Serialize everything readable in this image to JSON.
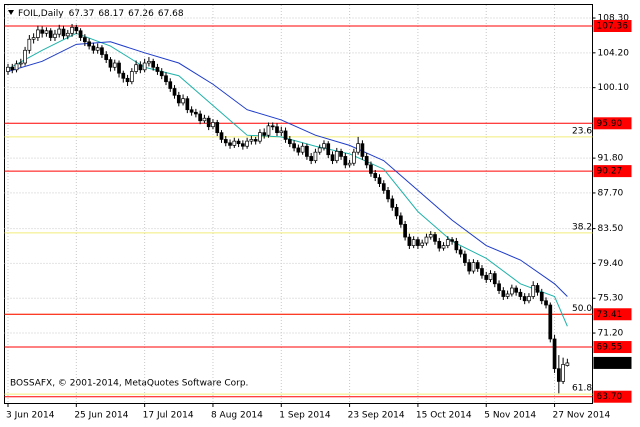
{
  "chart_data": {
    "type": "candlestick",
    "symbol": "FOIL,Daily",
    "copyright": "BOSSAFX, © 2001-2014, MetaQuotes Software Corp.",
    "categories": [
      "3 Jun 2014",
      null,
      null,
      null,
      null,
      null,
      null,
      null,
      null,
      null,
      null,
      null,
      null,
      null,
      null,
      null,
      "25 Jun 2014",
      null,
      null,
      null,
      null,
      null,
      null,
      null,
      null,
      null,
      null,
      null,
      null,
      null,
      null,
      null,
      "17 Jul 2014",
      null,
      null,
      null,
      null,
      null,
      null,
      null,
      null,
      null,
      null,
      null,
      null,
      null,
      null,
      null,
      "8 Aug 2014",
      null,
      null,
      null,
      null,
      null,
      null,
      null,
      null,
      null,
      null,
      null,
      null,
      null,
      null,
      null,
      "1 Sep 2014",
      null,
      null,
      null,
      null,
      null,
      null,
      null,
      null,
      null,
      null,
      null,
      null,
      null,
      null,
      null,
      "23 Sep 2014",
      null,
      null,
      null,
      null,
      null,
      null,
      null,
      null,
      null,
      null,
      null,
      null,
      null,
      null,
      null,
      "15 Oct 2014",
      null,
      null,
      null,
      null,
      null,
      null,
      null,
      null,
      null,
      null,
      null,
      null,
      null,
      null,
      null,
      "5 Nov 2014",
      null,
      null,
      null,
      null,
      null,
      null,
      null,
      null,
      null,
      null,
      null,
      null,
      null,
      null,
      null,
      "27 Nov 2014",
      null,
      null,
      null
    ],
    "candles": [
      [
        102.0,
        102.9,
        101.6,
        102.5
      ],
      [
        102.5,
        102.9,
        101.8,
        102.2
      ],
      [
        102.2,
        103.3,
        101.9,
        102.9
      ],
      [
        102.9,
        103.5,
        102.5,
        103.0
      ],
      [
        103.0,
        104.9,
        102.7,
        104.5
      ],
      [
        104.5,
        106.3,
        104.1,
        105.8
      ],
      [
        105.8,
        106.5,
        105.3,
        106.0
      ],
      [
        106.0,
        107.4,
        105.6,
        106.9
      ],
      [
        106.9,
        107.3,
        106.0,
        106.5
      ],
      [
        106.5,
        107.2,
        106.1,
        106.8
      ],
      [
        106.8,
        107.1,
        105.6,
        106.0
      ],
      [
        106.0,
        106.9,
        105.6,
        106.4
      ],
      [
        106.4,
        107.5,
        106.0,
        107.0
      ],
      [
        107.0,
        107.4,
        105.8,
        106.2
      ],
      [
        106.2,
        106.9,
        105.8,
        106.5
      ],
      [
        106.5,
        107.6,
        106.1,
        107.2
      ],
      [
        107.2,
        107.5,
        106.4,
        106.8
      ],
      [
        106.8,
        107.1,
        105.6,
        106.0
      ],
      [
        106.0,
        106.4,
        105.0,
        105.5
      ],
      [
        105.5,
        105.9,
        104.6,
        105.0
      ],
      [
        105.0,
        105.4,
        104.1,
        104.5
      ],
      [
        104.5,
        105.3,
        104.1,
        104.8
      ],
      [
        104.8,
        105.1,
        103.6,
        104.0
      ],
      [
        104.0,
        104.4,
        103.0,
        103.4
      ],
      [
        103.4,
        103.7,
        102.0,
        102.5
      ],
      [
        102.5,
        103.4,
        102.1,
        103.0
      ],
      [
        103.0,
        103.3,
        101.3,
        101.8
      ],
      [
        101.8,
        102.1,
        100.7,
        101.2
      ],
      [
        101.2,
        101.6,
        100.3,
        100.8
      ],
      [
        100.8,
        102.4,
        100.5,
        102.0
      ],
      [
        102.0,
        103.3,
        101.7,
        102.8
      ],
      [
        102.8,
        103.2,
        101.8,
        102.2
      ],
      [
        102.2,
        103.5,
        101.9,
        103.0
      ],
      [
        103.0,
        103.7,
        102.6,
        103.2
      ],
      [
        103.2,
        103.5,
        102.1,
        102.5
      ],
      [
        102.5,
        102.9,
        101.6,
        102.0
      ],
      [
        102.0,
        102.4,
        101.1,
        101.5
      ],
      [
        101.5,
        101.9,
        100.4,
        100.8
      ],
      [
        100.8,
        101.2,
        99.6,
        100.0
      ],
      [
        100.0,
        100.4,
        98.8,
        99.2
      ],
      [
        99.2,
        99.6,
        97.9,
        98.3
      ],
      [
        98.3,
        99.3,
        98.0,
        98.8
      ],
      [
        98.8,
        99.1,
        97.1,
        97.5
      ],
      [
        97.5,
        97.9,
        96.8,
        97.2
      ],
      [
        97.2,
        97.6,
        96.6,
        97.0
      ],
      [
        97.0,
        97.4,
        95.8,
        96.2
      ],
      [
        96.2,
        96.9,
        95.9,
        96.5
      ],
      [
        96.5,
        96.8,
        95.1,
        95.5
      ],
      [
        95.5,
        96.4,
        95.2,
        96.0
      ],
      [
        96.0,
        96.3,
        94.4,
        94.8
      ],
      [
        94.8,
        95.1,
        93.6,
        94.0
      ],
      [
        94.0,
        94.4,
        93.2,
        93.6
      ],
      [
        93.6,
        94.0,
        92.9,
        93.3
      ],
      [
        93.3,
        94.2,
        93.0,
        93.8
      ],
      [
        93.8,
        94.1,
        93.1,
        93.5
      ],
      [
        93.5,
        93.9,
        92.8,
        93.2
      ],
      [
        93.2,
        94.2,
        92.9,
        93.8
      ],
      [
        93.8,
        94.4,
        93.4,
        94.0
      ],
      [
        94.0,
        94.3,
        93.4,
        93.8
      ],
      [
        93.8,
        95.2,
        93.5,
        94.8
      ],
      [
        94.8,
        95.3,
        94.1,
        94.5
      ],
      [
        94.5,
        96.0,
        94.2,
        95.6
      ],
      [
        95.6,
        96.0,
        95.1,
        95.5
      ],
      [
        95.5,
        95.9,
        94.4,
        94.8
      ],
      [
        94.8,
        95.5,
        94.4,
        95.0
      ],
      [
        95.0,
        95.4,
        93.6,
        94.0
      ],
      [
        94.0,
        94.4,
        93.1,
        93.5
      ],
      [
        93.5,
        93.9,
        92.6,
        93.0
      ],
      [
        93.0,
        93.4,
        92.1,
        92.5
      ],
      [
        92.5,
        93.6,
        92.2,
        93.2
      ],
      [
        93.2,
        93.5,
        91.6,
        92.0
      ],
      [
        92.0,
        92.4,
        91.1,
        91.5
      ],
      [
        91.5,
        92.9,
        91.2,
        92.5
      ],
      [
        92.5,
        93.4,
        92.2,
        93.0
      ],
      [
        93.0,
        93.9,
        92.7,
        93.5
      ],
      [
        93.5,
        93.8,
        91.8,
        92.2
      ],
      [
        92.2,
        92.6,
        91.1,
        91.5
      ],
      [
        91.5,
        93.0,
        91.2,
        92.6
      ],
      [
        92.6,
        92.9,
        91.6,
        92.0
      ],
      [
        92.0,
        92.4,
        90.6,
        91.0
      ],
      [
        91.0,
        91.6,
        90.7,
        91.2
      ],
      [
        91.2,
        92.9,
        90.9,
        92.5
      ],
      [
        92.5,
        94.3,
        92.2,
        93.5
      ],
      [
        93.5,
        93.9,
        91.6,
        92.0
      ],
      [
        92.0,
        92.4,
        90.6,
        91.0
      ],
      [
        91.0,
        91.4,
        89.6,
        90.0
      ],
      [
        90.0,
        90.4,
        89.1,
        89.5
      ],
      [
        89.5,
        89.9,
        88.4,
        88.8
      ],
      [
        88.8,
        89.2,
        87.6,
        88.0
      ],
      [
        88.0,
        88.4,
        86.6,
        87.0
      ],
      [
        87.0,
        87.4,
        85.6,
        86.0
      ],
      [
        86.0,
        86.4,
        84.6,
        85.0
      ],
      [
        85.0,
        85.4,
        83.6,
        84.0
      ],
      [
        84.0,
        84.4,
        82.1,
        82.5
      ],
      [
        82.5,
        82.9,
        81.1,
        81.5
      ],
      [
        81.5,
        82.6,
        81.2,
        82.2
      ],
      [
        82.2,
        82.5,
        81.1,
        81.5
      ],
      [
        81.5,
        82.2,
        81.2,
        81.8
      ],
      [
        81.8,
        82.9,
        81.5,
        82.5
      ],
      [
        82.5,
        83.2,
        82.2,
        82.8
      ],
      [
        82.8,
        83.1,
        81.6,
        82.0
      ],
      [
        82.0,
        82.4,
        80.8,
        81.2
      ],
      [
        81.2,
        81.9,
        80.9,
        81.5
      ],
      [
        81.5,
        82.6,
        81.2,
        82.2
      ],
      [
        82.2,
        82.5,
        81.6,
        82.0
      ],
      [
        82.0,
        82.4,
        80.6,
        81.0
      ],
      [
        81.0,
        81.4,
        80.1,
        80.5
      ],
      [
        80.5,
        80.9,
        79.1,
        79.5
      ],
      [
        79.5,
        79.9,
        78.1,
        78.5
      ],
      [
        78.5,
        79.9,
        78.2,
        79.5
      ],
      [
        79.5,
        79.8,
        78.4,
        78.8
      ],
      [
        78.8,
        79.2,
        77.6,
        78.0
      ],
      [
        78.0,
        78.4,
        77.1,
        77.5
      ],
      [
        77.5,
        78.6,
        77.2,
        78.2
      ],
      [
        78.2,
        78.5,
        76.6,
        77.0
      ],
      [
        77.0,
        77.4,
        75.8,
        76.2
      ],
      [
        76.2,
        76.6,
        75.1,
        75.5
      ],
      [
        75.5,
        76.2,
        75.2,
        75.8
      ],
      [
        75.8,
        76.9,
        75.5,
        76.5
      ],
      [
        76.5,
        76.8,
        75.6,
        76.0
      ],
      [
        76.0,
        76.4,
        75.1,
        75.5
      ],
      [
        75.5,
        75.9,
        74.6,
        75.0
      ],
      [
        75.0,
        75.9,
        74.7,
        75.5
      ],
      [
        75.5,
        77.3,
        75.2,
        76.8
      ],
      [
        76.8,
        77.1,
        75.6,
        76.0
      ],
      [
        76.0,
        76.4,
        74.6,
        75.0
      ],
      [
        75.0,
        75.4,
        74.1,
        74.5
      ],
      [
        74.5,
        74.8,
        70.1,
        70.5
      ],
      [
        70.5,
        71.0,
        66.5,
        67.0
      ],
      [
        67.0,
        68.6,
        64.1,
        65.5
      ],
      [
        65.5,
        68.3,
        65.2,
        67.5
      ],
      [
        67.37,
        68.17,
        67.26,
        67.68
      ]
    ],
    "up_color": "#ffffff",
    "down_color": "#000000",
    "candle_outline": "#000000",
    "series": [
      {
        "color": "#20b2aa",
        "x": [
          0,
          8,
          16,
          24,
          32,
          40,
          48,
          56,
          64,
          72,
          80,
          88,
          96,
          104,
          112,
          120,
          128,
          131
        ],
        "values": [
          102.3,
          104.5,
          106.5,
          105.0,
          102.5,
          101.5,
          98.0,
          94.5,
          94.3,
          93.2,
          92.3,
          90.5,
          85.5,
          82.0,
          80.0,
          77.0,
          75.5,
          72.0
        ]
      },
      {
        "color": "#1e3cc8",
        "x": [
          0,
          8,
          16,
          24,
          32,
          40,
          48,
          56,
          64,
          72,
          80,
          88,
          96,
          104,
          112,
          120,
          128,
          131
        ],
        "values": [
          102.0,
          103.2,
          105.2,
          105.5,
          104.2,
          103.0,
          100.5,
          97.5,
          96.3,
          94.5,
          93.3,
          91.5,
          88.0,
          84.5,
          81.5,
          79.8,
          77.0,
          75.5
        ]
      }
    ],
    "levels": [
      107.36,
      {
        "value": 95.9,
        "label": "95.90"
      },
      90.27,
      73.41,
      69.55,
      {
        "value": 63.7,
        "label": "63.70"
      }
    ],
    "level_color": "#ff0000",
    "fibo_levels": [
      {
        "level": "23.6",
        "price": 94.3
      },
      {
        "level": "38.2",
        "price": 83.0
      },
      {
        "level": "50.0",
        "price": 73.4
      },
      {
        "level": "61.8",
        "price": 64.0
      }
    ],
    "fibo_color": "#f2ec7a",
    "ylim": [
      62.96,
      109.48
    ],
    "yticks": [
      {
        "value": 108.3,
        "label": "108.30"
      },
      {
        "value": 104.2,
        "label": "104.20"
      },
      {
        "value": 100.1,
        "label": "100.10"
      },
      {
        "value": 91.8,
        "label": "91.80"
      },
      {
        "value": 87.7,
        "label": "87.70"
      },
      {
        "value": 83.5,
        "label": "83.50"
      },
      {
        "value": 79.4,
        "label": "79.40"
      },
      {
        "value": 75.3,
        "label": "75.30"
      },
      {
        "value": 71.2,
        "label": "71.20"
      }
    ],
    "grid": true
  }
}
